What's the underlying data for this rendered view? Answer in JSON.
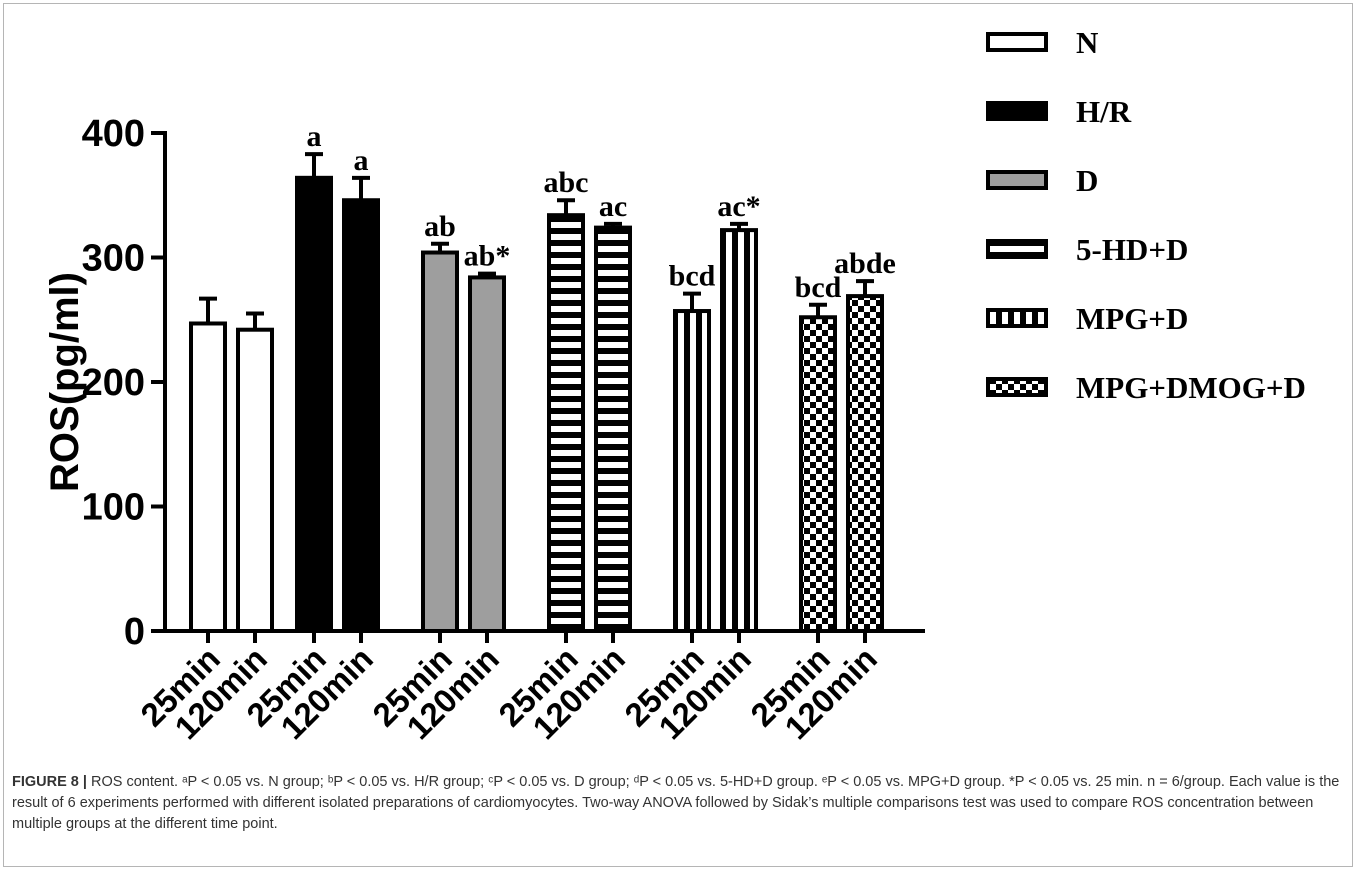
{
  "chart_data": {
    "type": "bar",
    "ylabel": "ROS(pg/ml)",
    "xlabel": "",
    "ylim": [
      0,
      400
    ],
    "yticks": [
      0,
      100,
      200,
      300,
      400
    ],
    "categories": [
      "25min",
      "120min"
    ],
    "grid": false,
    "legend_position": "right",
    "series": [
      {
        "name": "N",
        "values": [
          247,
          242
        ],
        "errors": [
          20,
          13
        ],
        "annotations": [
          "",
          ""
        ],
        "pattern": "white"
      },
      {
        "name": "H/R",
        "values": [
          364,
          346
        ],
        "errors": [
          19,
          18
        ],
        "annotations": [
          "a",
          "a"
        ],
        "pattern": "black"
      },
      {
        "name": "D",
        "values": [
          304,
          284
        ],
        "errors": [
          7,
          3
        ],
        "annotations": [
          "ab",
          "ab*"
        ],
        "pattern": "gray"
      },
      {
        "name": "5-HD+D",
        "values": [
          334,
          324
        ],
        "errors": [
          12,
          3
        ],
        "annotations": [
          "abc",
          "ac"
        ],
        "pattern": "hstripes"
      },
      {
        "name": "MPG+D",
        "values": [
          257,
          322
        ],
        "errors": [
          14,
          5
        ],
        "annotations": [
          "bcd",
          "ac*"
        ],
        "pattern": "vstripes"
      },
      {
        "name": "MPG+DMOG+D",
        "values": [
          252,
          269
        ],
        "errors": [
          10,
          12
        ],
        "annotations": [
          "bcd",
          "abde"
        ],
        "pattern": "checker"
      }
    ]
  },
  "colors": {
    "bar_stroke": "#000000",
    "gray_fill": "#9e9e9e",
    "black_fill": "#000000",
    "caption_text": "#333333",
    "frame_border": "#b5b5b5"
  },
  "caption": {
    "label": "FIGURE 8 |",
    "text": "ROS content. ᵃP < 0.05 vs. N group; ᵇP < 0.05 vs. H/R group; ᶜP < 0.05 vs. D group; ᵈP < 0.05 vs. 5-HD+D group. ᵉP < 0.05 vs. MPG+D group. *P < 0.05 vs. 25 min. n = 6/group. Each value is the result of 6 experiments performed with different isolated preparations of cardiomyocytes. Two-way ANOVA followed by Sidak’s multiple comparisons test was used to compare ROS concentration between multiple groups at the different time point."
  }
}
